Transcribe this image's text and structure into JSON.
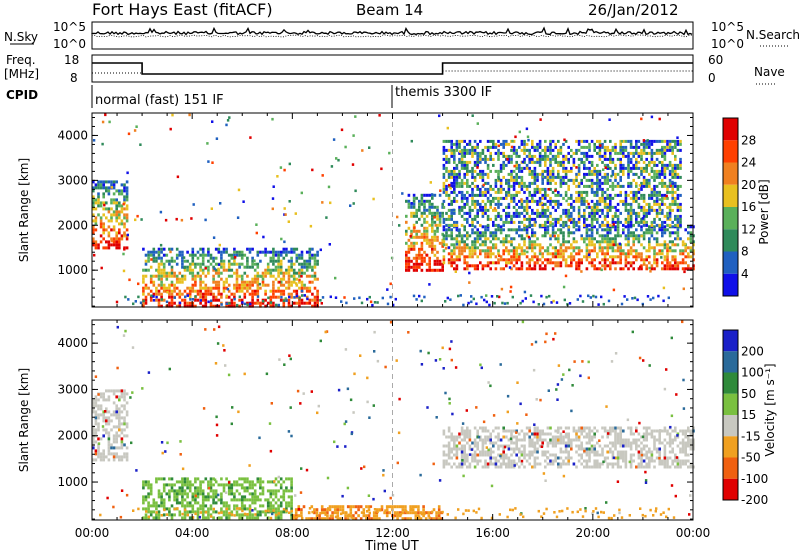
{
  "header": {
    "title": "Fort Hays East (fitACF)",
    "beam": "Beam 14",
    "date": "26/Jan/2012"
  },
  "top_panels": {
    "nsky_label": "N.Sky",
    "nsearch_label": "N.Search",
    "nsky_ticks": [
      "10^5",
      "10^0"
    ],
    "nsearch_ticks": [
      "10^5",
      "10^0"
    ],
    "freq_label": "Freq.",
    "freq_unit": "[MHz]",
    "freq_ticks": [
      "18",
      "8"
    ],
    "nave_label": "Nave",
    "nave_ticks": [
      "60",
      "0"
    ],
    "cpid_label": "CPID",
    "cpid_modes": [
      "normal (fast) 151 IF",
      "themis 3300 IF"
    ],
    "freq_step_hours": [
      2.0,
      14.0
    ]
  },
  "chart_data": [
    {
      "type": "heatmap",
      "title": "",
      "xlabel": "",
      "ylabel": "Slant Range [km]",
      "xlim": [
        0,
        24
      ],
      "ylim": [
        180,
        4500
      ],
      "y_ticks": [
        "1000",
        "2000",
        "3000",
        "4000"
      ],
      "colorbar": {
        "label": "Power [dB]",
        "ticks": [
          "28",
          "24",
          "20",
          "16",
          "12",
          "8",
          "4"
        ],
        "colors": [
          "#1010e8",
          "#2060c0",
          "#2f8a5a",
          "#5ab05a",
          "#e8c020",
          "#f08020",
          "#ff4000",
          "#e00000"
        ]
      },
      "echo_regions": [
        {
          "start_hour": 0.0,
          "end_hour": 1.4,
          "range_km": [
            1500,
            3000
          ],
          "power_db": "12-28"
        },
        {
          "start_hour": 2.0,
          "end_hour": 9.0,
          "range_km": [
            200,
            1500
          ],
          "power_db": "4-28"
        },
        {
          "start_hour": 12.5,
          "end_hour": 14.0,
          "range_km": [
            1000,
            2700
          ],
          "power_db": "8-28"
        },
        {
          "start_hour": 14.0,
          "end_hour": 24.0,
          "range_km": [
            1000,
            2000
          ],
          "power_db": "20-28"
        },
        {
          "start_hour": 14.0,
          "end_hour": 23.5,
          "range_km": [
            2000,
            3900
          ],
          "power_db": "4-16"
        }
      ]
    },
    {
      "type": "heatmap",
      "title": "",
      "xlabel": "Time UT",
      "ylabel": "Slant Range [km]",
      "xlim": [
        0,
        24
      ],
      "ylim": [
        180,
        4500
      ],
      "x_ticks": [
        "00:00",
        "04:00",
        "08:00",
        "12:00",
        "16:00",
        "20:00",
        "00:00"
      ],
      "y_ticks": [
        "1000",
        "2000",
        "3000",
        "4000"
      ],
      "colorbar": {
        "label": "Velocity [m s⁻¹]",
        "ticks": [
          "200",
          "100",
          "50",
          "15",
          "-15",
          "-50",
          "-100",
          "-200"
        ],
        "colors": [
          "#1a20c8",
          "#2a6a9a",
          "#2f8a3a",
          "#7ac040",
          "#c8c8c0",
          "#f0a020",
          "#f06010",
          "#e00000"
        ]
      },
      "echo_regions": [
        {
          "start_hour": 0.0,
          "end_hour": 1.4,
          "range_km": [
            1500,
            3000
          ],
          "velocity": "-15 to 15"
        },
        {
          "start_hour": 2.0,
          "end_hour": 8.0,
          "range_km": [
            200,
            1100
          ],
          "velocity": "15 to 50"
        },
        {
          "start_hour": 8.0,
          "end_hour": 14.0,
          "range_km": [
            200,
            500
          ],
          "velocity": "-50 to -15"
        },
        {
          "start_hour": 14.0,
          "end_hour": 24.0,
          "range_km": [
            1300,
            2200
          ],
          "velocity": "-15 to 15"
        }
      ]
    }
  ]
}
